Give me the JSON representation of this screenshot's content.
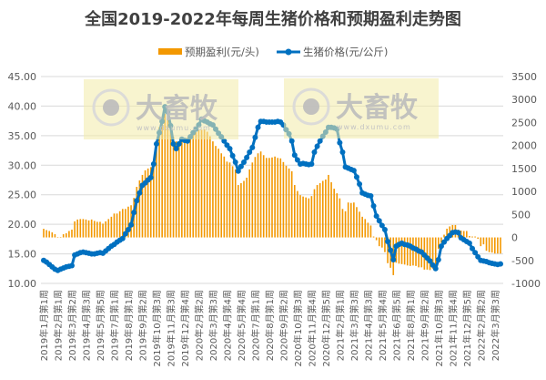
{
  "chart_data": {
    "type": "bar+line",
    "title": "全国2019-2022年每周生猪价格和预期盈利走势图",
    "legend_placement": "top",
    "grid": true,
    "colors": {
      "profit": "#F39800",
      "price": "#0070C0",
      "watermark_bg": "#F2EBA8"
    },
    "watermark": {
      "brand": "大畜牧",
      "site": "www.dxumu.com"
    },
    "y_left": {
      "ylim": [
        10,
        45
      ],
      "ticks": [
        "45.00",
        "40.00",
        "35.00",
        "30.00",
        "25.00",
        "20.00",
        "15.00",
        "10.00"
      ]
    },
    "y_right": {
      "ylim": [
        -1000,
        3500
      ],
      "ticks": [
        "3500",
        "3000",
        "2500",
        "2000",
        "1500",
        "1000",
        "500",
        "0",
        "-500",
        "-1000"
      ]
    },
    "x_tick_labels": [
      "2019年1月第1周",
      "2019年2月第1周",
      "2019年3月第2周",
      "2019年4月第3周",
      "2019年5月第5周",
      "2019年7月第1周",
      "2019年8月第1周",
      "2019年9月第2周",
      "2019年10月第3周",
      "2019年11月第3周",
      "2019年12月第4周",
      "2020年2月第2周",
      "2020年3月第3周",
      "2020年4月第4周",
      "2020年5月第4周",
      "2020年7月第1周",
      "2020年8月第1周",
      "2020年9月第2周",
      "2020年10月第3周",
      "2020年11月第4周",
      "2020年12月第5周",
      "2021年2月第1周",
      "2021年3月第3周",
      "2021年4月第3周",
      "2021年5月第4周",
      "2021年6月第5周",
      "2021年8月第1周",
      "2021年9月第2周",
      "2021年10月第3周",
      "2021年11月第4周",
      "2021年12月第5周",
      "2022年2月第2周",
      "2022年3月第3周"
    ],
    "x_tick_every_weeks": 5,
    "series": [
      {
        "name": "预期盈利(元/头)",
        "type": "bar",
        "axis": "right",
        "values": [
          188,
          160,
          140,
          110,
          70,
          10,
          5,
          70,
          90,
          140,
          170,
          350,
          390,
          400,
          400,
          390,
          370,
          390,
          360,
          340,
          340,
          300,
          350,
          400,
          450,
          520,
          520,
          570,
          620,
          620,
          670,
          700,
          860,
          1100,
          1240,
          1360,
          1460,
          1500,
          1530,
          1600,
          2000,
          2400,
          2600,
          2690,
          2590,
          2390,
          2190,
          2090,
          2090,
          2100,
          2130,
          2170,
          2210,
          2250,
          2290,
          2330,
          2340,
          2350,
          2300,
          2200,
          2090,
          1990,
          1930,
          1830,
          1760,
          1650,
          1630,
          1550,
          1480,
          1140,
          1180,
          1230,
          1300,
          1480,
          1630,
          1750,
          1830,
          1870,
          1790,
          1730,
          1730,
          1740,
          1760,
          1730,
          1720,
          1640,
          1560,
          1500,
          1440,
          1140,
          1010,
          920,
          890,
          870,
          850,
          900,
          1050,
          1140,
          1180,
          1230,
          1260,
          1360,
          1200,
          1060,
          960,
          850,
          620,
          570,
          760,
          750,
          760,
          660,
          560,
          450,
          400,
          320,
          260,
          20,
          -60,
          -190,
          -220,
          -320,
          -560,
          -660,
          -820,
          -550,
          -570,
          -580,
          -590,
          -610,
          -620,
          -610,
          -620,
          -650,
          -650,
          -700,
          -700,
          -710,
          -680,
          -590,
          -250,
          -120,
          60,
          190,
          240,
          270,
          270,
          170,
          150,
          140,
          140,
          30,
          20,
          20,
          -30,
          -190,
          -150,
          -290,
          -320,
          -330,
          -350,
          -350,
          -350
        ]
      },
      {
        "name": "生猪价格(元/公斤)",
        "type": "line",
        "axis": "left",
        "values": [
          13.9,
          13.6,
          13.2,
          12.8,
          12.4,
          12.2,
          12.4,
          12.6,
          12.8,
          12.9,
          13.0,
          14.8,
          15.0,
          15.2,
          15.3,
          15.2,
          15.1,
          15.0,
          15.0,
          15.1,
          15.2,
          15.1,
          15.5,
          15.9,
          16.3,
          16.6,
          17.0,
          17.3,
          17.6,
          18.4,
          19.1,
          19.9,
          22.0,
          24.0,
          25.3,
          26.6,
          27.0,
          27.5,
          27.9,
          30.2,
          33.6,
          35.5,
          37.4,
          39.9,
          39.0,
          36.7,
          33.6,
          32.8,
          33.6,
          34.4,
          34.2,
          34.1,
          34.8,
          35.5,
          36.1,
          36.8,
          37.8,
          37.5,
          37.3,
          37.0,
          36.8,
          36.1,
          35.4,
          34.8,
          34.1,
          33.4,
          32.8,
          31.6,
          30.5,
          29.0,
          29.8,
          30.5,
          31.3,
          32.2,
          33.0,
          34.7,
          36.4,
          37.4,
          37.4,
          37.3,
          37.3,
          37.3,
          37.3,
          37.4,
          37.3,
          36.8,
          36.0,
          35.3,
          34.1,
          31.7,
          30.9,
          30.2,
          30.3,
          30.2,
          30.1,
          30.2,
          32.2,
          33.2,
          34.1,
          34.9,
          35.6,
          36.4,
          36.4,
          36.3,
          36.1,
          33.8,
          32.2,
          29.7,
          29.5,
          29.3,
          29.1,
          28.0,
          26.8,
          25.3,
          25.1,
          24.9,
          24.8,
          23.1,
          21.4,
          20.6,
          19.8,
          19.1,
          17.1,
          15.6,
          14.0,
          16.3,
          16.6,
          16.8,
          16.6,
          16.5,
          16.3,
          16.0,
          15.8,
          15.5,
          15.3,
          14.8,
          14.3,
          13.8,
          13.1,
          12.5,
          14.0,
          16.3,
          17.0,
          17.6,
          18.1,
          18.6,
          18.7,
          18.6,
          17.7,
          17.4,
          17.1,
          16.8,
          15.9,
          15.2,
          14.5,
          13.9,
          13.8,
          13.7,
          13.5,
          13.4,
          13.3,
          13.2,
          13.3
        ]
      }
    ]
  }
}
